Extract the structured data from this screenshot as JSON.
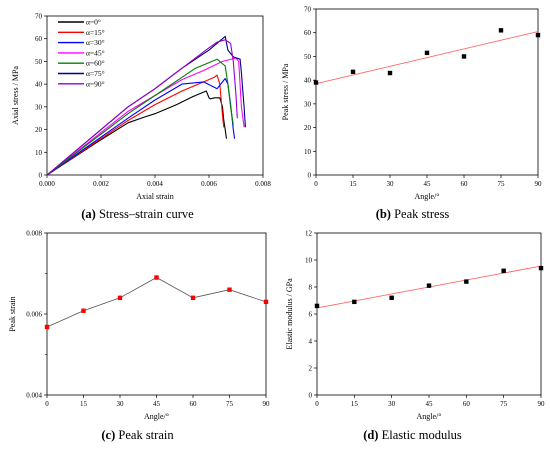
{
  "chart_data": [
    {
      "id": "a",
      "type": "line",
      "caption_label": "(a)",
      "caption_text": "Stress–strain curve",
      "xlabel": "Axial strain",
      "ylabel": "Axial stress / MPa",
      "xlim": [
        0,
        0.008
      ],
      "ylim": [
        0,
        70
      ],
      "xticks": [
        "0.000",
        "0.002",
        "0.004",
        "0.006",
        "0.008"
      ],
      "yticks": [
        "0",
        "10",
        "20",
        "30",
        "40",
        "50",
        "60",
        "70"
      ],
      "legend_position": "top-left",
      "series": [
        {
          "name": "α=0°",
          "color": "#000000",
          "x": [
            0,
            0.0018,
            0.003,
            0.0036,
            0.004,
            0.0048,
            0.0054,
            0.0059,
            0.006,
            0.00605,
            0.0062,
            0.0064,
            0.0065,
            0.00655,
            0.0066,
            0.00665
          ],
          "y": [
            0,
            14,
            23,
            25.5,
            27,
            31,
            34.5,
            37,
            34,
            33.5,
            34,
            34,
            30,
            24,
            20,
            16
          ]
        },
        {
          "name": "α=15°",
          "color": "#ff0000",
          "x": [
            0,
            0.003,
            0.004,
            0.005,
            0.0058,
            0.0062,
            0.0063,
            0.0064,
            0.00645,
            0.0065,
            0.00655
          ],
          "y": [
            0,
            24,
            31,
            37,
            41,
            43,
            44,
            40,
            33,
            26,
            21
          ]
        },
        {
          "name": "α=30°",
          "color": "#0000ff",
          "x": [
            0,
            0.003,
            0.004,
            0.005,
            0.0058,
            0.0063,
            0.0065,
            0.0066,
            0.0067,
            0.0068,
            0.0069,
            0.00695
          ],
          "y": [
            0,
            25,
            33,
            40,
            41,
            38,
            41,
            42.5,
            40,
            31,
            20,
            16
          ]
        },
        {
          "name": "α=45°",
          "color": "#ff00ff",
          "x": [
            0,
            0.003,
            0.004,
            0.005,
            0.0058,
            0.0065,
            0.007,
            0.0071,
            0.0072,
            0.0073
          ],
          "y": [
            0,
            28,
            35,
            42,
            46,
            50,
            51.5,
            50,
            30,
            21
          ]
        },
        {
          "name": "α=60°",
          "color": "#008000",
          "x": [
            0,
            0.003,
            0.004,
            0.005,
            0.0055,
            0.0059,
            0.0063,
            0.0066,
            0.0067,
            0.0068,
            0.0069
          ],
          "y": [
            0,
            27,
            35,
            43,
            47,
            49,
            51,
            48,
            40,
            30,
            22
          ]
        },
        {
          "name": "α=75°",
          "color": "#000080",
          "x": [
            0,
            0.003,
            0.004,
            0.005,
            0.006,
            0.0065,
            0.0066,
            0.0067,
            0.0069,
            0.00715,
            0.0072,
            0.0073,
            0.00735
          ],
          "y": [
            0,
            30,
            38,
            47,
            55,
            60,
            61,
            55,
            52,
            51,
            45,
            30,
            21
          ]
        },
        {
          "name": "α=90°",
          "color": "#9900cc",
          "x": [
            0,
            0.003,
            0.004,
            0.005,
            0.006,
            0.0063,
            0.0066,
            0.0068,
            0.0069,
            0.007,
            0.00705
          ],
          "y": [
            0,
            30,
            38,
            47,
            56,
            58.5,
            59.5,
            58,
            50,
            35,
            25
          ]
        }
      ]
    },
    {
      "id": "b",
      "type": "scatter",
      "caption_label": "(b)",
      "caption_text": "Peak stress",
      "xlabel": "Angle/°",
      "ylabel": "Peak stress / MPa",
      "xlim": [
        0,
        90
      ],
      "ylim": [
        0,
        70
      ],
      "xticks": [
        "0",
        "15",
        "30",
        "45",
        "60",
        "75",
        "90"
      ],
      "yticks": [
        "0",
        "10",
        "20",
        "30",
        "40",
        "50",
        "60",
        "70"
      ],
      "marker_color": "#000000",
      "fit_color": "#ff6666",
      "x": [
        0,
        15,
        30,
        45,
        60,
        75,
        90
      ],
      "y": [
        39,
        43.5,
        43,
        51.5,
        50,
        61,
        59
      ],
      "fit": {
        "x": [
          0,
          90
        ],
        "y": [
          38.5,
          60.5
        ]
      }
    },
    {
      "id": "c",
      "type": "line",
      "caption_label": "(c)",
      "caption_text": "Peak strain",
      "xlabel": "Angle/°",
      "ylabel": "Peak strain",
      "xlim": [
        0,
        90
      ],
      "ylim": [
        0.004,
        0.008
      ],
      "xticks": [
        "0",
        "15",
        "30",
        "45",
        "60",
        "75",
        "90"
      ],
      "yticks": [
        "0.004",
        "0.006",
        "0.008"
      ],
      "ytick_values": [
        0.004,
        0.006,
        0.008
      ],
      "minor_ytick_values": [
        0.005,
        0.007
      ],
      "line_color": "#555555",
      "marker_color": "#ff0000",
      "x": [
        0,
        15,
        30,
        45,
        60,
        75,
        90
      ],
      "y": [
        0.00568,
        0.00608,
        0.0064,
        0.0069,
        0.0064,
        0.0066,
        0.0063
      ]
    },
    {
      "id": "d",
      "type": "scatter",
      "caption_label": "(d)",
      "caption_text": "Elastic modulus",
      "xlabel": "Angle/°",
      "ylabel": "Elastic modulus / GPa",
      "xlim": [
        0,
        90
      ],
      "ylim": [
        0,
        12
      ],
      "xticks": [
        "0",
        "15",
        "30",
        "45",
        "60",
        "75",
        "90"
      ],
      "yticks": [
        "0",
        "2",
        "4",
        "6",
        "8",
        "10",
        "12"
      ],
      "marker_color": "#000000",
      "fit_color": "#ff6666",
      "x": [
        0,
        15,
        30,
        45,
        60,
        75,
        90
      ],
      "y": [
        6.6,
        6.9,
        7.2,
        8.1,
        8.4,
        9.2,
        9.4
      ],
      "fit": {
        "x": [
          0,
          90
        ],
        "y": [
          6.45,
          9.55
        ]
      }
    }
  ]
}
